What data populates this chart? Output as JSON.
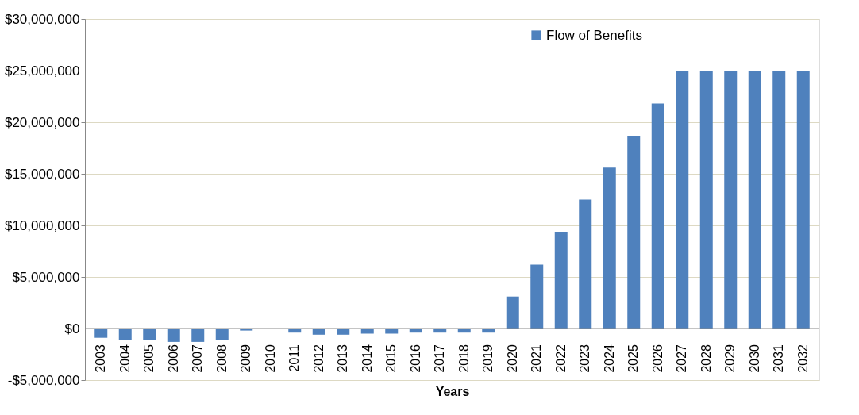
{
  "chart_data": {
    "type": "bar",
    "xlabel": "Years",
    "categories": [
      "2003",
      "2004",
      "2005",
      "2006",
      "2007",
      "2008",
      "2009",
      "2010",
      "2011",
      "2012",
      "2013",
      "2014",
      "2015",
      "2016",
      "2017",
      "2018",
      "2019",
      "2020",
      "2021",
      "2022",
      "2023",
      "2024",
      "2025",
      "2026",
      "2027",
      "2028",
      "2029",
      "2030",
      "2031",
      "2032"
    ],
    "series": [
      {
        "name": "Flow of Benefits",
        "color": "#4f81bd",
        "values": [
          -900000,
          -1100000,
          -1100000,
          -1300000,
          -1300000,
          -1100000,
          -200000,
          0,
          -400000,
          -600000,
          -600000,
          -500000,
          -500000,
          -400000,
          -400000,
          -400000,
          -400000,
          3100000,
          6200000,
          9300000,
          12500000,
          15600000,
          18700000,
          21800000,
          25000000,
          25000000,
          25000000,
          25000000,
          25000000,
          25000000
        ]
      }
    ],
    "ylim": [
      -5000000,
      30000000
    ],
    "yticks": [
      {
        "value": -5000000,
        "label": "-$5,000,000"
      },
      {
        "value": 0,
        "label": "$0"
      },
      {
        "value": 5000000,
        "label": "$5,000,000"
      },
      {
        "value": 10000000,
        "label": "$10,000,000"
      },
      {
        "value": 15000000,
        "label": "$15,000,000"
      },
      {
        "value": 20000000,
        "label": "$20,000,000"
      },
      {
        "value": 25000000,
        "label": "$25,000,000"
      },
      {
        "value": 30000000,
        "label": "$30,000,000"
      }
    ],
    "grid": "y",
    "legend": "top right"
  }
}
